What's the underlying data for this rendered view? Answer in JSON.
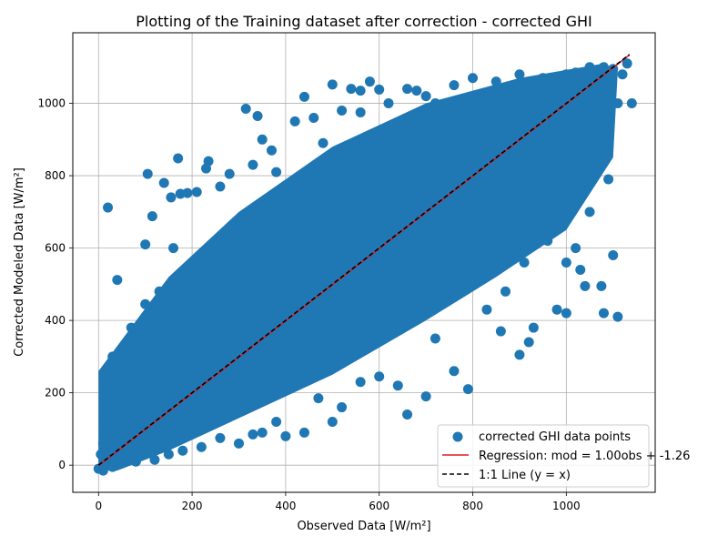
{
  "chart_data": {
    "type": "scatter",
    "title": "Plotting of the Training dataset after correction - corrected GHI",
    "xlabel": "Observed Data [W/m²]",
    "ylabel": "Corrected Modeled Data [W/m²]",
    "xlim": [
      -55,
      1190
    ],
    "ylim": [
      -75,
      1195
    ],
    "xticks": [
      0,
      200,
      400,
      600,
      800,
      1000
    ],
    "yticks": [
      0,
      200,
      400,
      600,
      800,
      1000
    ],
    "grid": true,
    "legend_position": "bottom-right",
    "colors": {
      "points": "#1f77b4",
      "regression": "#e41a1c",
      "identity": "#000000"
    },
    "series": [
      {
        "name": "corrected GHI data points",
        "kind": "scatter",
        "points": [
          [
            0,
            -10
          ],
          [
            5,
            30
          ],
          [
            10,
            60
          ],
          [
            15,
            5
          ],
          [
            20,
            120
          ],
          [
            25,
            250
          ],
          [
            20,
            712
          ],
          [
            40,
            512
          ],
          [
            30,
            300
          ],
          [
            50,
            180
          ],
          [
            60,
            140
          ],
          [
            70,
            380
          ],
          [
            80,
            90
          ],
          [
            90,
            250
          ],
          [
            100,
            445
          ],
          [
            100,
            610
          ],
          [
            105,
            805
          ],
          [
            115,
            688
          ],
          [
            130,
            480
          ],
          [
            140,
            780
          ],
          [
            150,
            300
          ],
          [
            155,
            740
          ],
          [
            160,
            600
          ],
          [
            170,
            848
          ],
          [
            175,
            750
          ],
          [
            190,
            752
          ],
          [
            210,
            755
          ],
          [
            230,
            820
          ],
          [
            235,
            840
          ],
          [
            260,
            770
          ],
          [
            280,
            805
          ],
          [
            300,
            660
          ],
          [
            315,
            985
          ],
          [
            330,
            830
          ],
          [
            340,
            965
          ],
          [
            350,
            900
          ],
          [
            370,
            870
          ],
          [
            380,
            810
          ],
          [
            400,
            760
          ],
          [
            420,
            950
          ],
          [
            440,
            1018
          ],
          [
            460,
            960
          ],
          [
            480,
            890
          ],
          [
            500,
            1052
          ],
          [
            510,
            850
          ],
          [
            520,
            980
          ],
          [
            540,
            1040
          ],
          [
            560,
            1035
          ],
          [
            580,
            1060
          ],
          [
            600,
            1038
          ],
          [
            620,
            1000
          ],
          [
            640,
            900
          ],
          [
            660,
            1040
          ],
          [
            680,
            1035
          ],
          [
            700,
            1020
          ],
          [
            720,
            1000
          ],
          [
            760,
            1050
          ],
          [
            800,
            1070
          ],
          [
            850,
            1060
          ],
          [
            900,
            1080
          ],
          [
            950,
            1070
          ],
          [
            1000,
            1080
          ],
          [
            1020,
            1085
          ],
          [
            1050,
            1100
          ],
          [
            1080,
            1100
          ],
          [
            1120,
            1080
          ],
          [
            1110,
            1000
          ],
          [
            1140,
            1000
          ],
          [
            1080,
            900
          ],
          [
            1060,
            820
          ],
          [
            1040,
            760
          ],
          [
            1050,
            700
          ],
          [
            1020,
            600
          ],
          [
            1000,
            560
          ],
          [
            1000,
            420
          ],
          [
            1090,
            790
          ],
          [
            1100,
            580
          ],
          [
            1080,
            420
          ],
          [
            1110,
            410
          ],
          [
            1030,
            540
          ],
          [
            1040,
            495
          ],
          [
            1075,
            495
          ],
          [
            980,
            430
          ],
          [
            930,
            380
          ],
          [
            920,
            340
          ],
          [
            900,
            305
          ],
          [
            860,
            370
          ],
          [
            830,
            430
          ],
          [
            790,
            210
          ],
          [
            760,
            260
          ],
          [
            720,
            350
          ],
          [
            700,
            190
          ],
          [
            660,
            140
          ],
          [
            640,
            220
          ],
          [
            600,
            245
          ],
          [
            560,
            230
          ],
          [
            520,
            160
          ],
          [
            500,
            120
          ],
          [
            470,
            185
          ],
          [
            440,
            90
          ],
          [
            400,
            80
          ],
          [
            380,
            120
          ],
          [
            350,
            90
          ],
          [
            330,
            85
          ],
          [
            300,
            60
          ],
          [
            260,
            75
          ],
          [
            220,
            50
          ],
          [
            180,
            40
          ],
          [
            150,
            30
          ],
          [
            120,
            15
          ],
          [
            80,
            10
          ],
          [
            50,
            5
          ],
          [
            30,
            -5
          ],
          [
            10,
            -15
          ],
          [
            200,
            200
          ],
          [
            400,
            400
          ],
          [
            600,
            600
          ],
          [
            800,
            800
          ],
          [
            1000,
            1000
          ],
          [
            300,
            300
          ],
          [
            500,
            500
          ],
          [
            700,
            700
          ],
          [
            900,
            900
          ],
          [
            250,
            400
          ],
          [
            450,
            600
          ],
          [
            650,
            800
          ],
          [
            850,
            950
          ],
          [
            350,
            200
          ],
          [
            550,
            400
          ],
          [
            750,
            600
          ],
          [
            950,
            800
          ],
          [
            1060,
            1070
          ],
          [
            1100,
            1095
          ],
          [
            1130,
            1110
          ],
          [
            180,
            500
          ],
          [
            240,
            550
          ],
          [
            320,
            600
          ],
          [
            420,
            700
          ],
          [
            520,
            760
          ],
          [
            620,
            850
          ],
          [
            720,
            920
          ],
          [
            820,
            960
          ],
          [
            280,
            160
          ],
          [
            380,
            240
          ],
          [
            480,
            330
          ],
          [
            580,
            420
          ],
          [
            680,
            500
          ],
          [
            780,
            580
          ],
          [
            880,
            650
          ],
          [
            980,
            720
          ],
          [
            560,
            975
          ],
          [
            600,
            570
          ],
          [
            640,
            460
          ],
          [
            740,
            460
          ],
          [
            820,
            520
          ],
          [
            870,
            480
          ],
          [
            910,
            560
          ],
          [
            960,
            620
          ],
          [
            1010,
            700
          ],
          [
            1050,
            990
          ]
        ]
      },
      {
        "name": "Regression: mod = 1.00obs + -1.26",
        "kind": "line",
        "slope": 1.0,
        "intercept": -1.26,
        "x": [
          0,
          1135
        ]
      },
      {
        "name": "1:1 Line (y = x)",
        "kind": "line",
        "slope": 1.0,
        "intercept": 0,
        "x": [
          0,
          1135
        ]
      }
    ]
  }
}
